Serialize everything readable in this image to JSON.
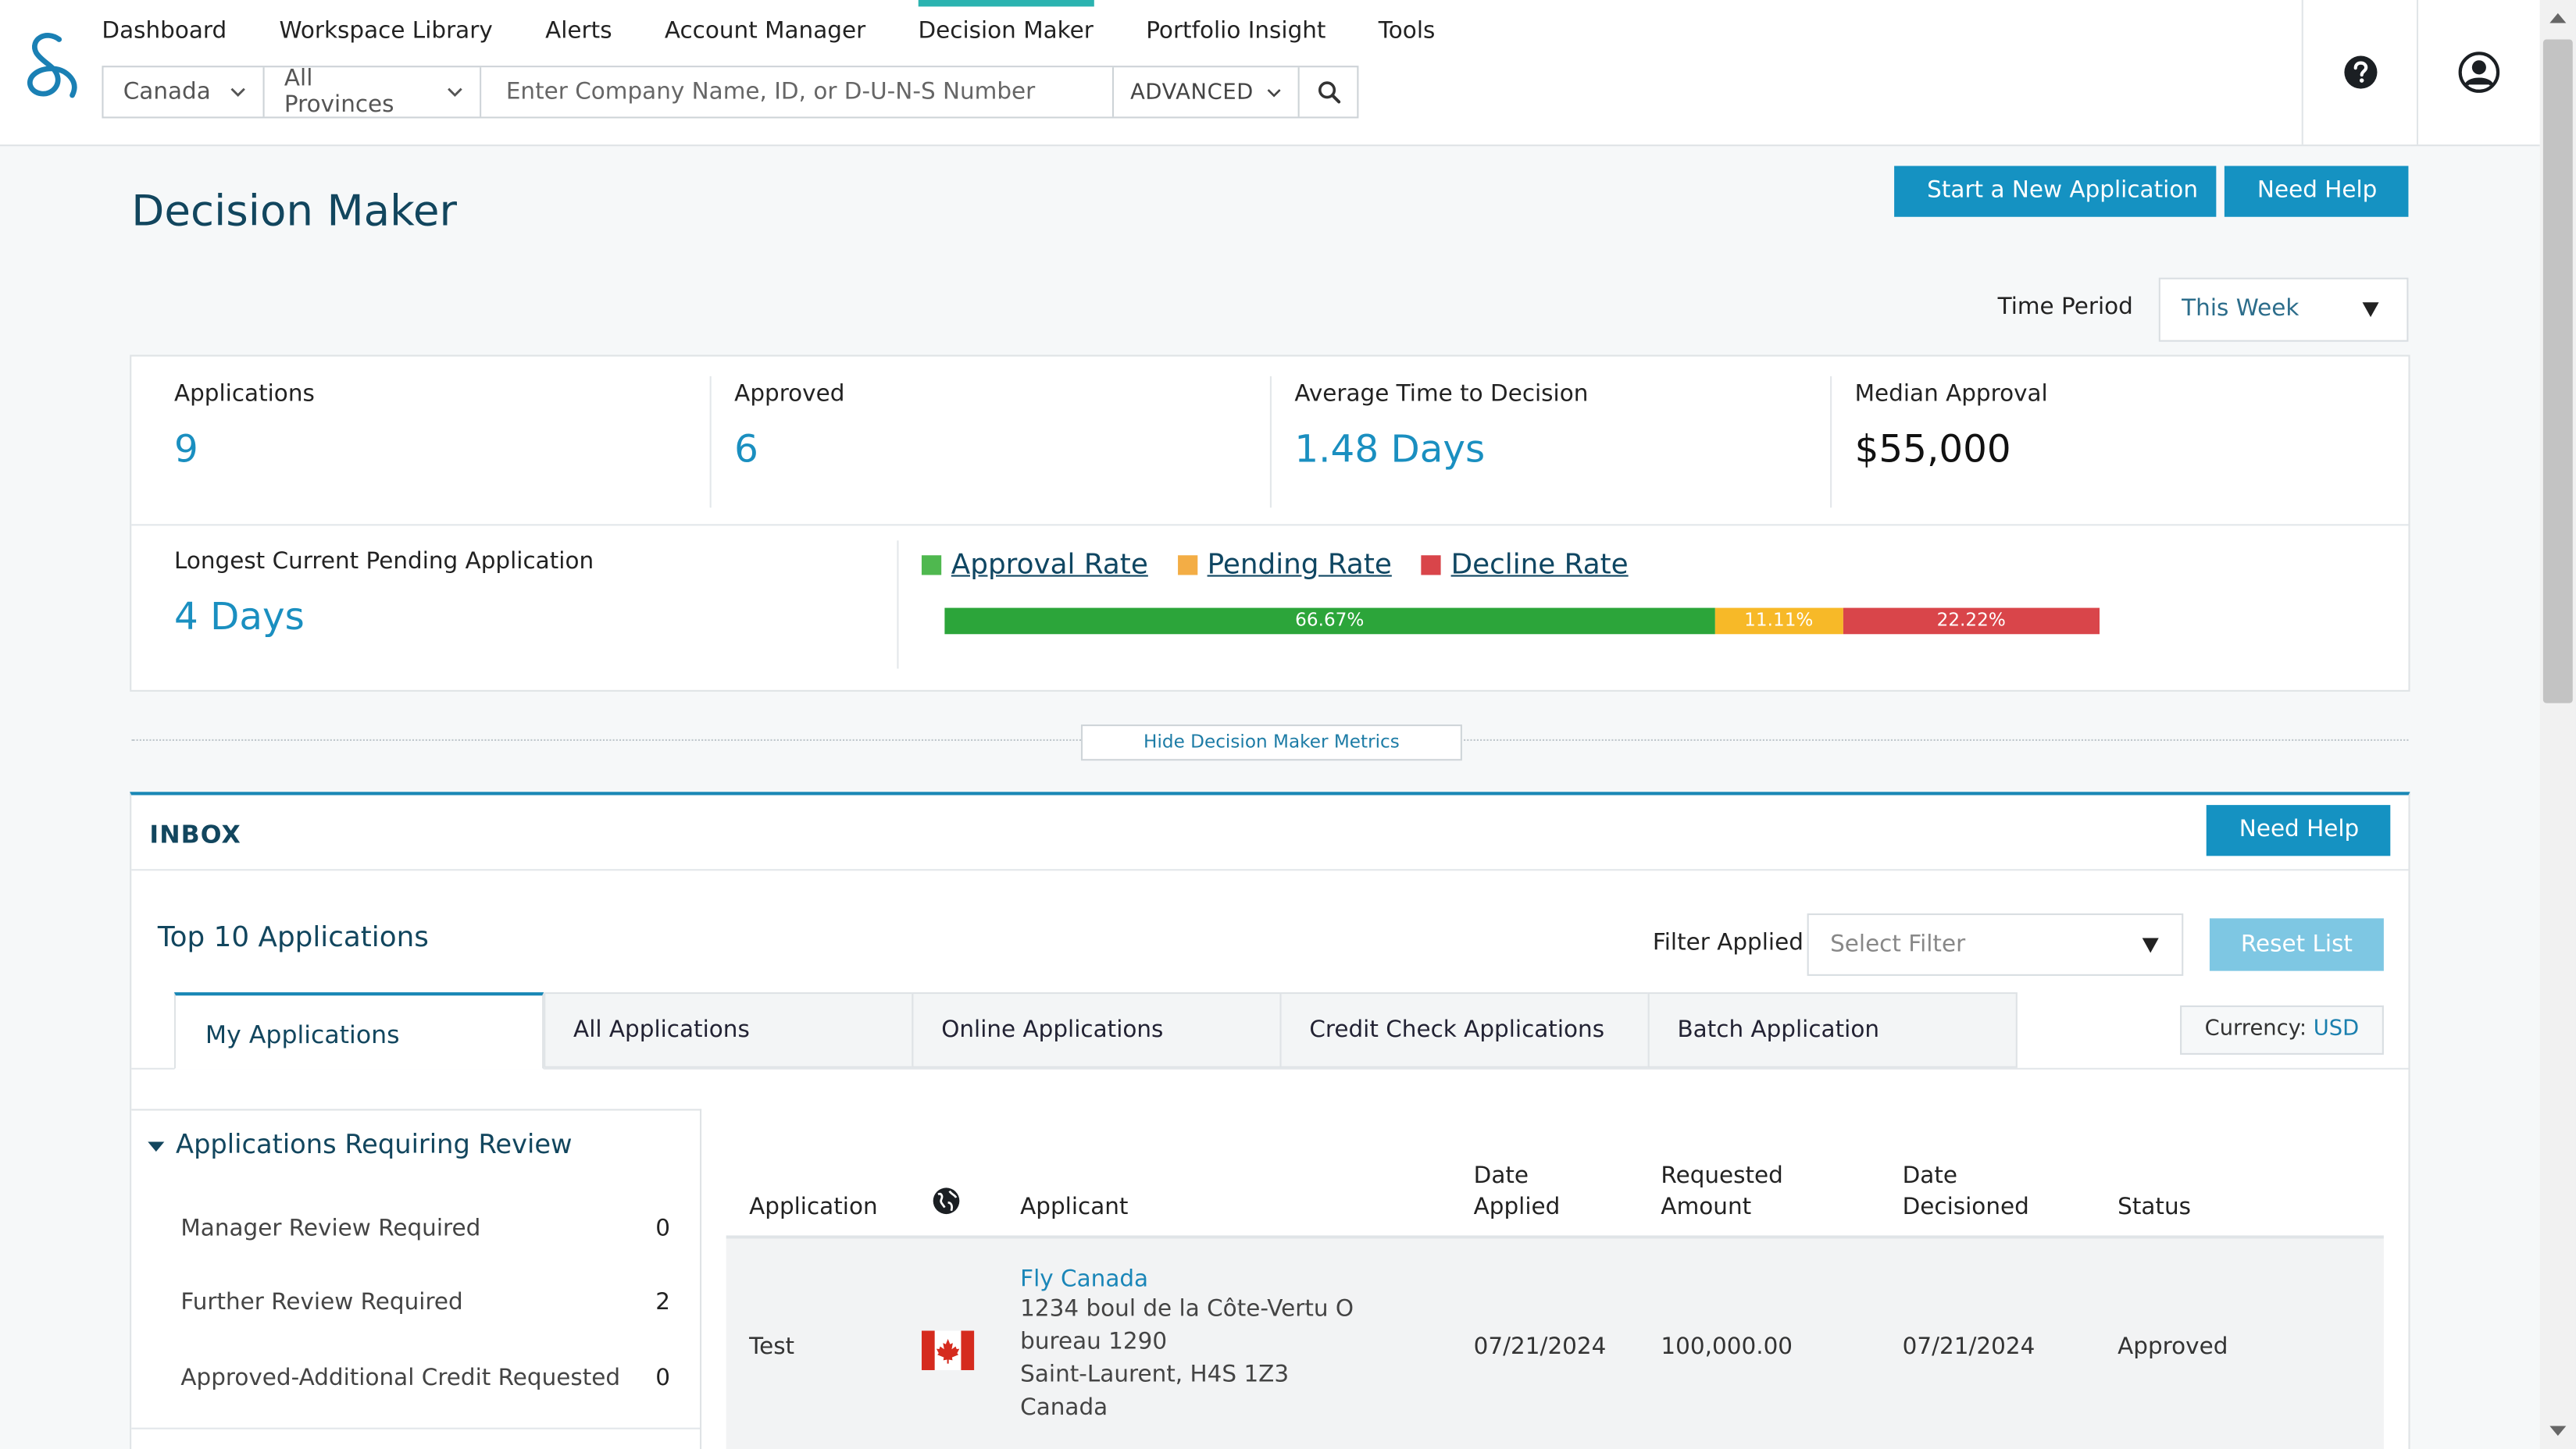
{
  "nav": {
    "items": [
      "Dashboard",
      "Workspace Library",
      "Alerts",
      "Account Manager",
      "Decision Maker",
      "Portfolio Insight",
      "Tools"
    ],
    "active": "Decision Maker"
  },
  "search": {
    "country": "Canada",
    "province": "All Provinces",
    "placeholder": "Enter Company Name, ID, or D-U-N-S Number",
    "advanced_label": "ADVANCED"
  },
  "header_icons": {
    "help": "help-circle-icon",
    "account": "user-account-icon"
  },
  "page": {
    "title": "Decision Maker",
    "start_button": "Start a New Application",
    "help_button": "Need Help",
    "time_period_label": "Time Period",
    "time_period_value": "This Week"
  },
  "metrics": {
    "applications": {
      "label": "Applications",
      "value": "9"
    },
    "approved": {
      "label": "Approved",
      "value": "6"
    },
    "avg_time": {
      "label": "Average Time to Decision",
      "value": "1.48 Days"
    },
    "median": {
      "label": "Median Approval",
      "value": "$55,000"
    },
    "longest": {
      "label": "Longest Current Pending Application",
      "value": "4 Days"
    },
    "legend": {
      "approval": "Approval Rate",
      "pending": "Pending Rate",
      "decline": "Decline Rate"
    },
    "rates": {
      "approval": {
        "value": 66.67,
        "label": "66.67%"
      },
      "pending": {
        "value": 11.11,
        "label": "11.11%"
      },
      "decline": {
        "value": 22.22,
        "label": "22.22%"
      }
    },
    "colors": {
      "approval": "#2ca53a",
      "pending": "#f7b928",
      "decline": "#d9454a",
      "approval_legend": "#4fb84f",
      "pending_legend": "#f3ad45",
      "decline_legend": "#d9454a"
    },
    "hide_button": "Hide Decision Maker Metrics"
  },
  "inbox": {
    "title": "INBOX",
    "help_button": "Need Help",
    "top_title": "Top 10 Applications",
    "filter_label": "Filter Applied",
    "filter_placeholder": "Select Filter",
    "reset_button": "Reset List",
    "tabs": [
      "My Applications",
      "All Applications",
      "Online Applications",
      "Credit Check Applications",
      "Batch Application"
    ],
    "currency_label": "Currency:",
    "currency_value": "USD",
    "review": {
      "title": "Applications Requiring Review",
      "items": [
        {
          "label": "Manager Review Required",
          "count": "0"
        },
        {
          "label": "Further Review Required",
          "count": "2"
        },
        {
          "label": "Approved-Additional Credit Requested",
          "count": "0"
        }
      ]
    },
    "table": {
      "headers": {
        "application": "Application",
        "country_icon": "globe-icon",
        "applicant": "Applicant",
        "date_applied_1": "Date",
        "date_applied_2": "Applied",
        "requested_1": "Requested",
        "requested_2": "Amount",
        "date_decisioned_1": "Date",
        "date_decisioned_2": "Decisioned",
        "status": "Status"
      },
      "rows": [
        {
          "application": "Test",
          "flag": "canada-flag-icon",
          "applicant_name": "Fly Canada",
          "address": [
            "1234 boul de la Côte-Vertu O",
            "bureau 1290",
            "Saint-Laurent, H4S 1Z3",
            "Canada"
          ],
          "date_applied": "07/21/2024",
          "requested_amount": "100,000.00",
          "date_decisioned": "07/21/2024",
          "status": "Approved"
        }
      ]
    }
  }
}
